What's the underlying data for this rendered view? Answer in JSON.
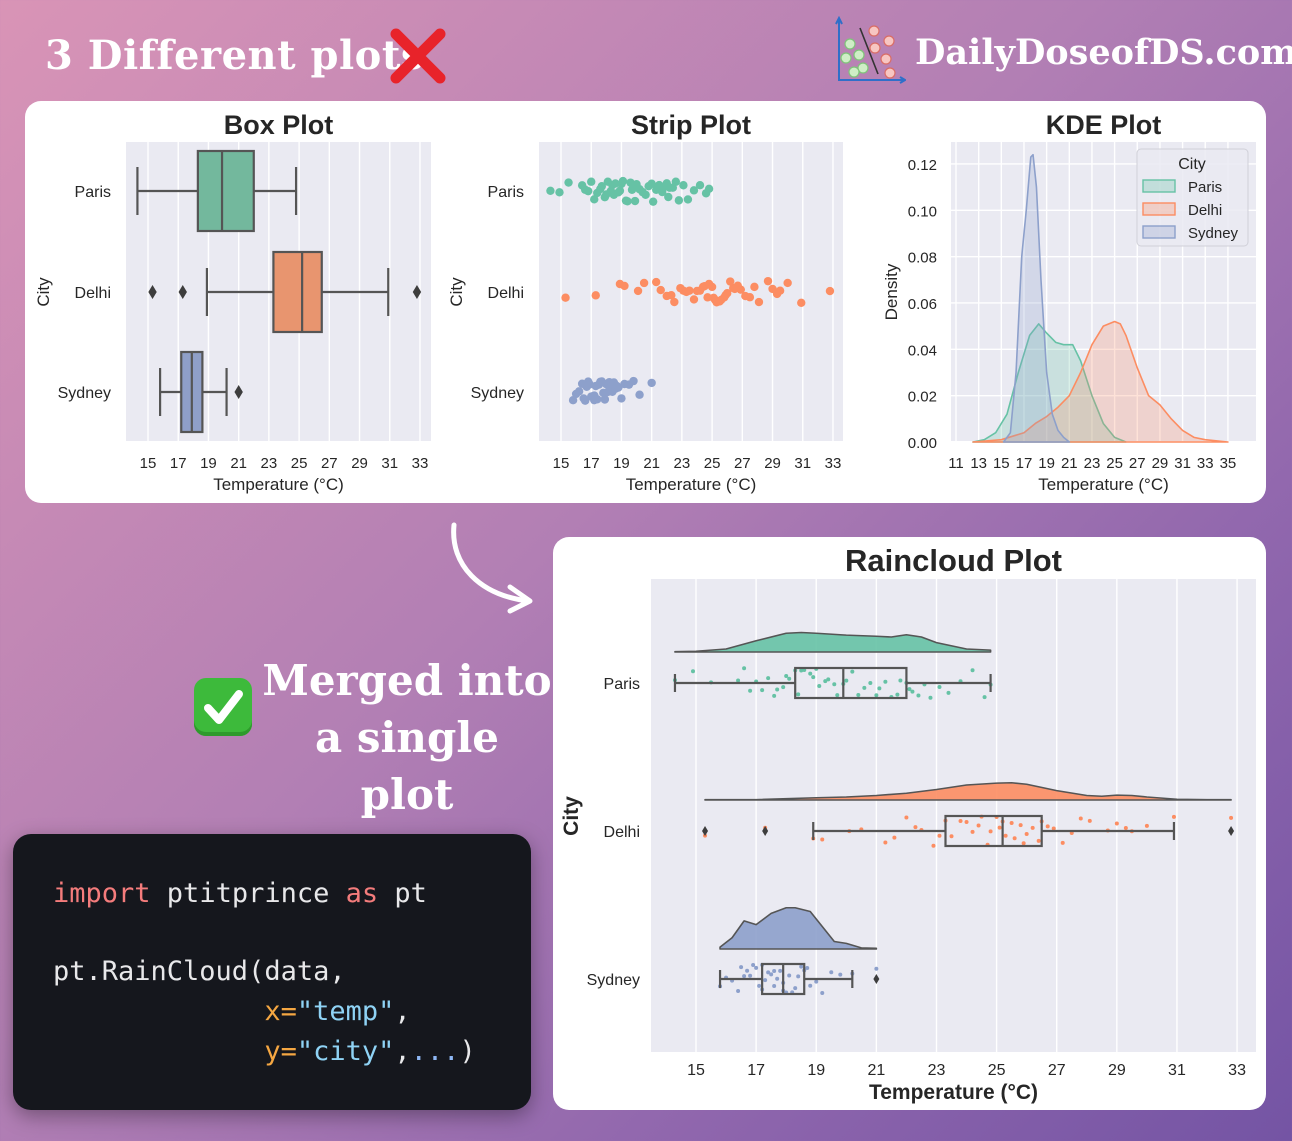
{
  "header": {
    "title": "3 Different plots",
    "cross_icon": "red-x-mark",
    "brand": "DailyDoseofDS.com",
    "logo_icon": "classifier-scatter-logo"
  },
  "merged": {
    "check_icon": "green-check-mark",
    "line1": "Merged into",
    "line2": "a single plot"
  },
  "code": {
    "lines": [
      [
        {
          "t": "import",
          "c": "kw"
        },
        {
          "t": " ptitprince ",
          "c": "id"
        },
        {
          "t": "as",
          "c": "kw"
        },
        {
          "t": " pt",
          "c": "id"
        }
      ],
      [
        {
          "t": "pt.RainCloud(data,",
          "c": "id"
        }
      ],
      [
        {
          "t": "             ",
          "c": "id"
        },
        {
          "t": "x=",
          "c": "arg"
        },
        {
          "t": "\"temp\"",
          "c": "str"
        },
        {
          "t": ",",
          "c": "id"
        }
      ],
      [
        {
          "t": "             ",
          "c": "id"
        },
        {
          "t": "y=",
          "c": "arg"
        },
        {
          "t": "\"city\"",
          "c": "str"
        },
        {
          "t": ",",
          "c": "id"
        },
        {
          "t": "...",
          "c": "dots"
        },
        {
          "t": ")",
          "c": "id"
        }
      ]
    ]
  },
  "colors": {
    "Paris": "#66c2a5",
    "Delhi": "#fc8d62",
    "Sydney": "#8da0cb",
    "plot_bg": "#eaeaf2",
    "box_edge": "#555555"
  },
  "chart_data": [
    {
      "type": "box",
      "title": "Box Plot",
      "xlabel": "Temperature (°C)",
      "ylabel": "City",
      "categories": [
        "Paris",
        "Delhi",
        "Sydney"
      ],
      "xticks": [
        "15",
        "17",
        "19",
        "21",
        "23",
        "25",
        "27",
        "29",
        "31",
        "33"
      ],
      "xlim": [
        13.5,
        33.7
      ],
      "grid": true,
      "boxes": [
        {
          "city": "Paris",
          "whisker_low": 14.3,
          "q1": 18.3,
          "median": 19.9,
          "q3": 22.0,
          "whisker_high": 24.8,
          "outliers": []
        },
        {
          "city": "Delhi",
          "whisker_low": 18.9,
          "q1": 23.3,
          "median": 25.2,
          "q3": 26.5,
          "whisker_high": 30.9,
          "outliers": [
            15.3,
            17.3,
            32.8
          ]
        },
        {
          "city": "Sydney",
          "whisker_low": 15.8,
          "q1": 17.2,
          "median": 17.9,
          "q3": 18.6,
          "whisker_high": 20.2,
          "outliers": [
            21.0
          ]
        }
      ]
    },
    {
      "type": "scatter",
      "subtype": "strip",
      "title": "Strip Plot",
      "xlabel": "Temperature (°C)",
      "ylabel": "City",
      "categories": [
        "Paris",
        "Delhi",
        "Sydney"
      ],
      "xticks": [
        "15",
        "17",
        "19",
        "21",
        "23",
        "25",
        "27",
        "29",
        "31",
        "33"
      ],
      "xlim": [
        13.5,
        33.7
      ],
      "grid": true,
      "series": [
        {
          "name": "Paris",
          "values": [
            14.3,
            14.9,
            15.5,
            16.4,
            16.6,
            16.8,
            17.0,
            17.2,
            17.4,
            17.6,
            17.7,
            17.9,
            18.0,
            18.1,
            18.3,
            18.4,
            18.5,
            18.6,
            18.8,
            18.9,
            19.0,
            19.1,
            19.3,
            19.4,
            19.6,
            19.7,
            19.9,
            20.0,
            20.2,
            20.4,
            20.6,
            20.8,
            21.0,
            21.1,
            21.3,
            21.5,
            21.7,
            21.8,
            22.0,
            22.1,
            22.2,
            22.4,
            22.6,
            22.8,
            23.1,
            23.4,
            23.8,
            24.2,
            24.6,
            24.8
          ]
        },
        {
          "name": "Delhi",
          "values": [
            15.3,
            17.3,
            18.9,
            19.2,
            20.1,
            20.5,
            21.3,
            21.6,
            22.0,
            22.3,
            22.5,
            22.9,
            23.1,
            23.3,
            23.5,
            23.8,
            24.0,
            24.2,
            24.4,
            24.5,
            24.7,
            24.8,
            25.0,
            25.1,
            25.2,
            25.3,
            25.5,
            25.6,
            25.8,
            25.9,
            26.0,
            26.2,
            26.4,
            26.5,
            26.7,
            26.9,
            27.2,
            27.5,
            27.8,
            28.1,
            28.7,
            29.0,
            29.3,
            29.5,
            30.0,
            30.9,
            32.8
          ]
        },
        {
          "name": "Sydney",
          "values": [
            15.8,
            16.0,
            16.2,
            16.4,
            16.5,
            16.6,
            16.7,
            16.8,
            16.9,
            17.0,
            17.1,
            17.2,
            17.2,
            17.3,
            17.4,
            17.5,
            17.6,
            17.6,
            17.7,
            17.8,
            17.9,
            17.9,
            18.0,
            18.1,
            18.2,
            18.3,
            18.4,
            18.5,
            18.6,
            18.7,
            18.8,
            19.0,
            19.2,
            19.5,
            19.8,
            20.2,
            21.0
          ]
        }
      ]
    },
    {
      "type": "area",
      "subtype": "kde",
      "title": "KDE Plot",
      "xlabel": "Temperature (°C)",
      "ylabel": "Density",
      "xticks": [
        "11",
        "13",
        "15",
        "17",
        "19",
        "21",
        "23",
        "25",
        "27",
        "29",
        "31",
        "33",
        "35"
      ],
      "yticks": [
        "0.00",
        "0.02",
        "0.04",
        "0.06",
        "0.08",
        "0.10",
        "0.12"
      ],
      "xlim": [
        10.5,
        37.4
      ],
      "ylim": [
        0,
        0.129
      ],
      "grid": true,
      "legend": {
        "title": "City",
        "placement": "top-right"
      },
      "series": [
        {
          "name": "Paris",
          "x": [
            12.5,
            13.5,
            14.5,
            15.5,
            16.5,
            17.5,
            18.3,
            19,
            19.8,
            20.5,
            21.3,
            22,
            23,
            24,
            25,
            26
          ],
          "y": [
            0,
            0.001,
            0.004,
            0.012,
            0.03,
            0.046,
            0.051,
            0.047,
            0.043,
            0.042,
            0.042,
            0.035,
            0.02,
            0.008,
            0.002,
            0
          ]
        },
        {
          "name": "Delhi",
          "x": [
            12.5,
            15,
            17,
            18,
            19,
            20,
            21,
            22,
            23,
            24,
            25,
            25.5,
            26,
            27,
            28,
            29,
            30,
            31,
            32,
            33,
            35
          ],
          "y": [
            0,
            0.001,
            0.004,
            0.008,
            0.011,
            0.015,
            0.02,
            0.03,
            0.042,
            0.05,
            0.052,
            0.051,
            0.046,
            0.032,
            0.02,
            0.016,
            0.01,
            0.005,
            0.002,
            0.001,
            0
          ]
        },
        {
          "name": "Sydney",
          "x": [
            15.2,
            15.8,
            16.3,
            16.8,
            17.2,
            17.6,
            17.8,
            18.1,
            18.5,
            19,
            19.5,
            20,
            20.5,
            21
          ],
          "y": [
            0,
            0.004,
            0.03,
            0.08,
            0.1,
            0.123,
            0.124,
            0.11,
            0.07,
            0.03,
            0.012,
            0.005,
            0.002,
            0
          ]
        }
      ]
    },
    {
      "type": "raincloud",
      "title": "Raincloud Plot",
      "xlabel": "Temperature (°C)",
      "ylabel": "City",
      "categories": [
        "Paris",
        "Delhi",
        "Sydney"
      ],
      "xticks": [
        "15",
        "17",
        "19",
        "21",
        "23",
        "25",
        "27",
        "29",
        "31",
        "33"
      ],
      "xlim": [
        13.5,
        33.6
      ],
      "grid": true,
      "clouds": [
        {
          "name": "Paris",
          "x": [
            14.3,
            15,
            16,
            17,
            18,
            18.5,
            19,
            20,
            21,
            21.5,
            22,
            22.5,
            23,
            24,
            24.8
          ],
          "y": [
            0.001,
            0.002,
            0.008,
            0.03,
            0.05,
            0.052,
            0.05,
            0.045,
            0.042,
            0.04,
            0.046,
            0.04,
            0.025,
            0.008,
            0.005
          ]
        },
        {
          "name": "Delhi",
          "x": [
            15.3,
            17,
            19,
            20,
            21,
            22,
            23,
            24,
            25,
            25.5,
            26,
            27,
            28,
            28.5,
            29,
            29.5,
            30,
            31,
            32,
            32.8
          ],
          "y": [
            0.001,
            0.001,
            0.006,
            0.008,
            0.012,
            0.018,
            0.028,
            0.04,
            0.045,
            0.046,
            0.042,
            0.025,
            0.012,
            0.01,
            0.013,
            0.012,
            0.008,
            0.002,
            0.001,
            0.001
          ]
        },
        {
          "name": "Sydney",
          "x": [
            15.8,
            16.2,
            16.6,
            17.0,
            17.5,
            18.0,
            18.3,
            18.8,
            19.2,
            19.6,
            20.0,
            20.5,
            21.0
          ],
          "y": [
            0.005,
            0.03,
            0.075,
            0.065,
            0.095,
            0.11,
            0.11,
            0.1,
            0.06,
            0.02,
            0.015,
            0.003,
            0.002
          ]
        }
      ],
      "boxes_from": "Box Plot",
      "rain_from": "Strip Plot"
    }
  ]
}
